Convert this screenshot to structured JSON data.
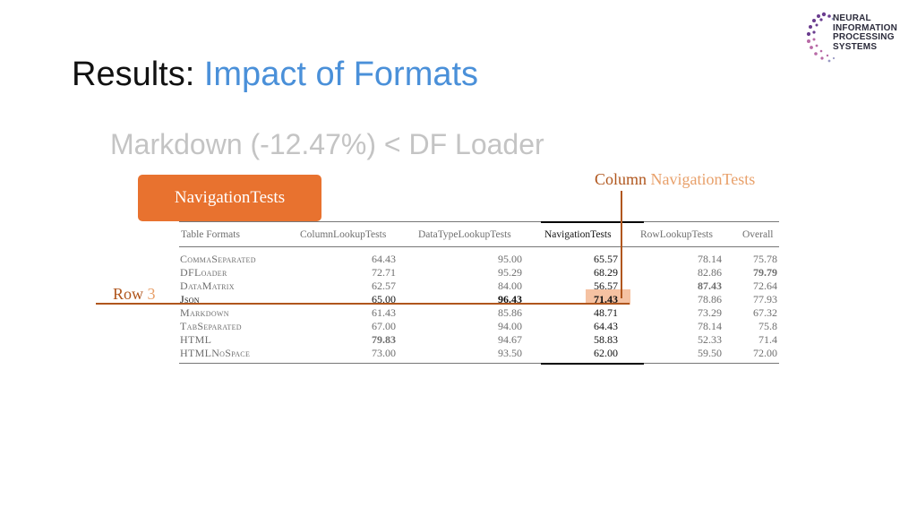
{
  "header": {
    "title_prefix": "Results:",
    "title_accent": "Impact of Formats",
    "subtitle": "Markdown (-12.47%) < DF Loader"
  },
  "logo": {
    "lines": [
      "NEURAL",
      "INFORMATION",
      "PROCESSING",
      "SYSTEMS"
    ],
    "icon": "neurips-dot-swirl-logo",
    "colors": [
      "#6a3d8f",
      "#b86aa6",
      "#9a9ac4"
    ]
  },
  "callouts": {
    "tag": "NavigationTests",
    "column_key": "Column",
    "column_value": "NavigationTests",
    "row_key": "Row",
    "row_value": "3",
    "accent_color": "#e8722f"
  },
  "table": {
    "headers": [
      "Table Formats",
      "ColumnLookupTests",
      "DataTypeLookupTests",
      "NavigationTests",
      "RowLookupTests",
      "Overall"
    ],
    "rows": [
      {
        "name": "CommaSeparated",
        "v": [
          "64.43",
          "95.00",
          "65.57",
          "78.14",
          "75.78"
        ]
      },
      {
        "name": "DFLoader",
        "v": [
          "72.71",
          "95.29",
          "68.29",
          "82.86",
          "79.79"
        ]
      },
      {
        "name": "DataMatrix",
        "v": [
          "62.57",
          "84.00",
          "56.57",
          "87.43",
          "72.64"
        ]
      },
      {
        "name": "Json",
        "v": [
          "65.00",
          "96.43",
          "71.43",
          "78.86",
          "77.93"
        ]
      },
      {
        "name": "Markdown",
        "v": [
          "61.43",
          "85.86",
          "48.71",
          "73.29",
          "67.32"
        ]
      },
      {
        "name": "TabSeparated",
        "v": [
          "67.00",
          "94.00",
          "64.43",
          "78.14",
          "75.8"
        ]
      },
      {
        "name": "HTML",
        "v": [
          "79.83",
          "94.67",
          "58.83",
          "52.33",
          "71.4"
        ]
      },
      {
        "name": "HTMLNoSpace",
        "v": [
          "73.00",
          "93.50",
          "62.00",
          "59.50",
          "72.00"
        ]
      }
    ]
  }
}
